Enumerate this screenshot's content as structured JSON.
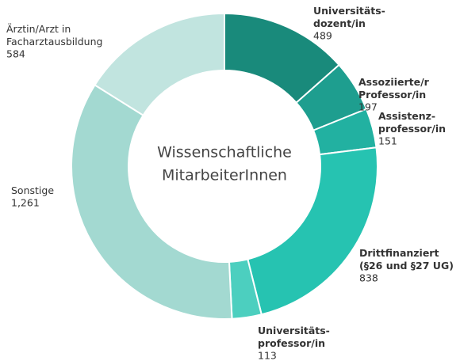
{
  "chart_data": {
    "type": "donut",
    "center_text": [
      "Wissenschaftliche",
      "MitarbeiterInnen"
    ],
    "categories": [
      "Universitäts-\ndozent/in",
      "Assoziierte/r\nProfessor/in",
      "Assistenz-\nprofessor/in",
      "Drittfinanziert\n(§26 und §27 UG)",
      "Universitäts-\nprofessor/in",
      "Sonstige",
      "Ärztin/Arzt in\nFacharztausbildung"
    ],
    "values": [
      489,
      197,
      151,
      838,
      113,
      1261,
      584
    ],
    "value_labels": [
      "489",
      "197",
      "151",
      "838",
      "113",
      "1,261",
      "584"
    ],
    "colors": [
      "#198a7b",
      "#1e9e8f",
      "#22b1a1",
      "#26c3b1",
      "#4ccfbf",
      "#a3d9d1",
      "#c1e4df"
    ]
  }
}
